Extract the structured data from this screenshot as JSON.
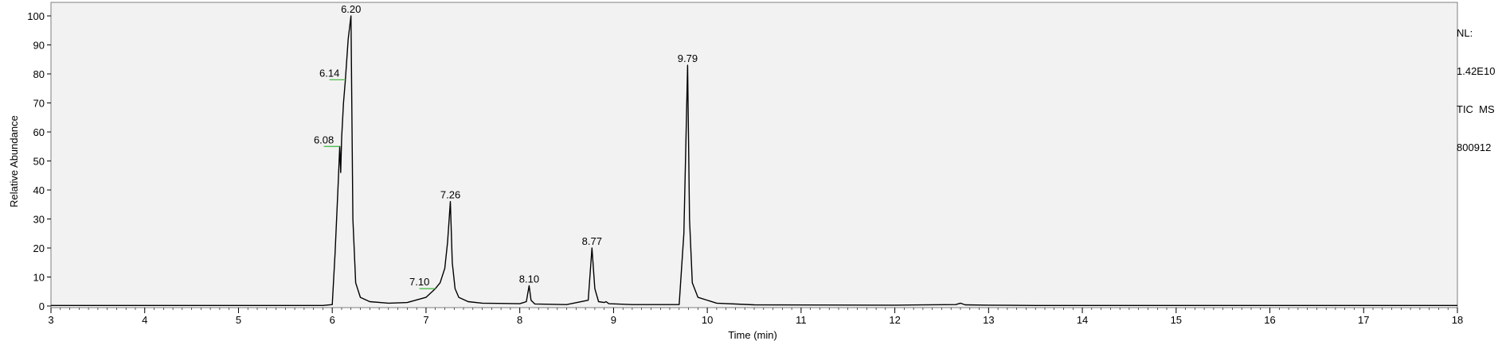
{
  "chart_data": {
    "type": "line",
    "xlabel": "Time (min)",
    "ylabel": "Relative Abundance",
    "xlim": [
      3,
      18
    ],
    "ylim": [
      0,
      100
    ],
    "x_ticks": [
      3,
      4,
      5,
      6,
      7,
      8,
      9,
      10,
      11,
      12,
      13,
      14,
      15,
      16,
      17,
      18
    ],
    "y_ticks": [
      0,
      10,
      20,
      30,
      40,
      50,
      60,
      70,
      80,
      90,
      100
    ],
    "grid": false,
    "background": "#f2f2f2",
    "line_color": "#000000",
    "marker_color": "#3cb43c",
    "series": [
      {
        "x": [
          3.0,
          5.9,
          6.0,
          6.03,
          6.06,
          6.08,
          6.09,
          6.1,
          6.12,
          6.14,
          6.17,
          6.2,
          6.22,
          6.25,
          6.3,
          6.4,
          6.6,
          6.8,
          7.0,
          7.1,
          7.15,
          7.2,
          7.23,
          7.26,
          7.28,
          7.31,
          7.35,
          7.45,
          7.6,
          8.0,
          8.07,
          8.1,
          8.12,
          8.16,
          8.5,
          8.73,
          8.77,
          8.8,
          8.84,
          8.9,
          8.92,
          8.95,
          9.2,
          9.7,
          9.75,
          9.79,
          9.81,
          9.84,
          9.9,
          10.1,
          10.5,
          12.0,
          12.65,
          12.7,
          12.75,
          13.0,
          13.5,
          18.0
        ],
        "y": [
          0.2,
          0.2,
          0.5,
          18,
          40,
          55,
          46,
          58,
          70,
          78,
          92,
          100,
          30,
          8,
          3,
          1.5,
          1,
          1.2,
          3,
          6,
          8,
          13,
          22,
          36,
          15,
          6,
          3,
          1.5,
          1,
          0.8,
          1.5,
          7,
          2,
          0.7,
          0.5,
          2,
          20,
          6,
          1.5,
          1.2,
          1.5,
          0.8,
          0.5,
          0.5,
          25,
          83,
          30,
          8,
          3,
          1,
          0.4,
          0.3,
          0.5,
          1,
          0.4,
          0.3,
          0.2,
          0.2
        ]
      }
    ],
    "peak_labels": [
      {
        "text": "6.20",
        "x": 6.2,
        "y": 100,
        "marker": false
      },
      {
        "text": "6.14",
        "x": 6.14,
        "y": 78,
        "marker": true
      },
      {
        "text": "6.08",
        "x": 6.08,
        "y": 55,
        "marker": true
      },
      {
        "text": "7.26",
        "x": 7.26,
        "y": 36,
        "marker": false
      },
      {
        "text": "7.10",
        "x": 7.1,
        "y": 6,
        "marker": true
      },
      {
        "text": "8.10",
        "x": 8.1,
        "y": 7,
        "marker": false
      },
      {
        "text": "8.77",
        "x": 8.77,
        "y": 20,
        "marker": false
      },
      {
        "text": "9.79",
        "x": 9.79,
        "y": 83,
        "marker": false
      }
    ]
  },
  "side_info": {
    "nl_label": "NL:",
    "nl_value": "1.42E10",
    "scan_filter": "TIC  MS",
    "file_name": "800912"
  }
}
